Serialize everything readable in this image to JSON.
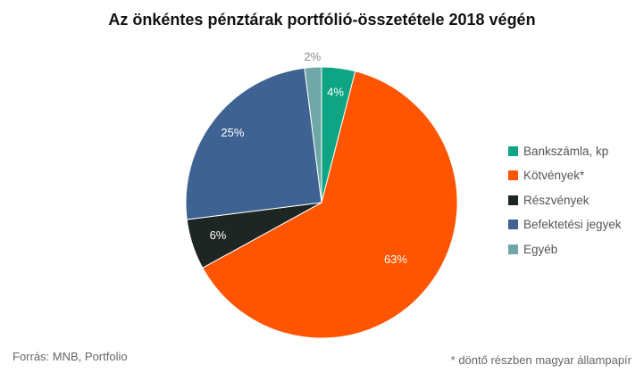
{
  "title": "Az önkéntes pénztárak portfólió-összetétele 2018 végén",
  "source": "Forrás: MNB, Portfolio",
  "footnote": "* döntő részben magyar állampapír",
  "chart_data": {
    "type": "pie",
    "title": "Az önkéntes pénztárak portfólió-összetétele 2018 végén",
    "labels": [
      "Bankszámla, kp",
      "Kötvények*",
      "Részvények",
      "Befektetési jegyek",
      "Egyéb"
    ],
    "values": [
      4,
      63,
      6,
      25,
      2
    ],
    "value_labels": [
      "4%",
      "63%",
      "6%",
      "25%",
      "2%"
    ],
    "colors": [
      "#0ea584",
      "#ff5500",
      "#1d2622",
      "#3e6291",
      "#6ea7a6"
    ],
    "start": "top, clockwise",
    "legend_position": "right"
  }
}
